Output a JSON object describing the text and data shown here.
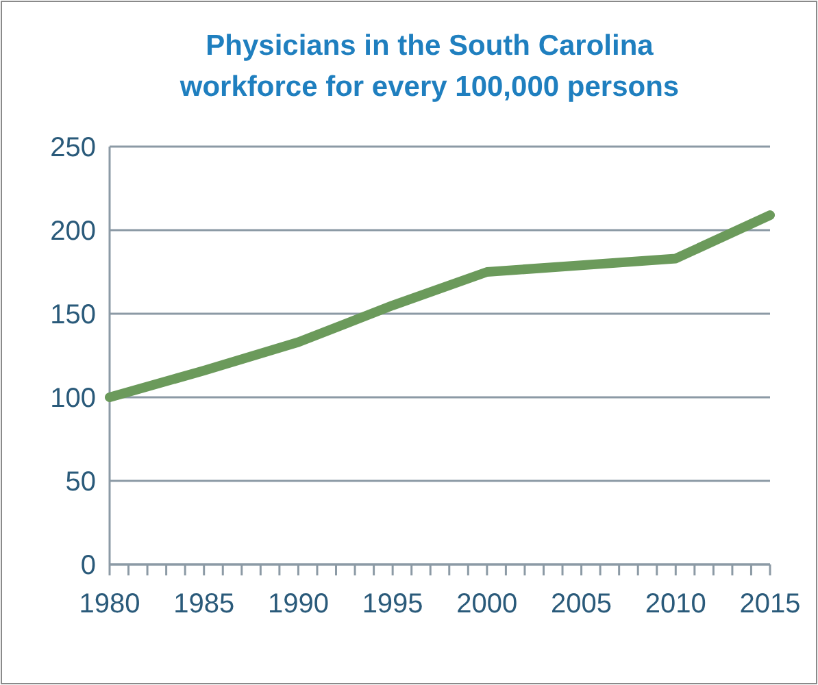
{
  "chart_data": {
    "type": "line",
    "title": "Physicians in the South Carolina workforce for every 100,000 persons",
    "x": [
      1980,
      1985,
      1990,
      1995,
      2000,
      2005,
      2010,
      2015
    ],
    "series": [
      {
        "color": "#6b9a5b",
        "values": [
          100,
          116,
          133,
          155,
          175,
          179,
          183,
          209
        ]
      }
    ],
    "xlim": [
      1980,
      2015
    ],
    "xticks": [
      1980,
      {
        "value": 1981,
        "label": null
      },
      {
        "value": 1982,
        "label": null
      },
      {
        "value": 1983,
        "label": null
      },
      {
        "value": 1984,
        "label": null
      },
      1985,
      {
        "value": 1986,
        "label": null
      },
      {
        "value": 1987,
        "label": null
      },
      {
        "value": 1988,
        "label": null
      },
      {
        "value": 1989,
        "label": null
      },
      1990,
      {
        "value": 1991,
        "label": null
      },
      {
        "value": 1992,
        "label": null
      },
      {
        "value": 1993,
        "label": null
      },
      {
        "value": 1994,
        "label": null
      },
      1995,
      {
        "value": 1996,
        "label": null
      },
      {
        "value": 1997,
        "label": null
      },
      {
        "value": 1998,
        "label": null
      },
      {
        "value": 1999,
        "label": null
      },
      2000,
      {
        "value": 2001,
        "label": null
      },
      {
        "value": 2002,
        "label": null
      },
      {
        "value": 2003,
        "label": null
      },
      {
        "value": 2004,
        "label": null
      },
      2005,
      {
        "value": 2006,
        "label": null
      },
      {
        "value": 2007,
        "label": null
      },
      {
        "value": 2008,
        "label": null
      },
      {
        "value": 2009,
        "label": null
      },
      2010,
      {
        "value": 2011,
        "label": null
      },
      {
        "value": 2012,
        "label": null
      },
      {
        "value": 2013,
        "label": null
      },
      {
        "value": 2014,
        "label": null
      },
      2015
    ],
    "ylim": [
      0,
      250
    ],
    "yticks": [
      0,
      50,
      100,
      150,
      200,
      250
    ],
    "grid": "y",
    "marker": "none",
    "line_style": "solid"
  }
}
